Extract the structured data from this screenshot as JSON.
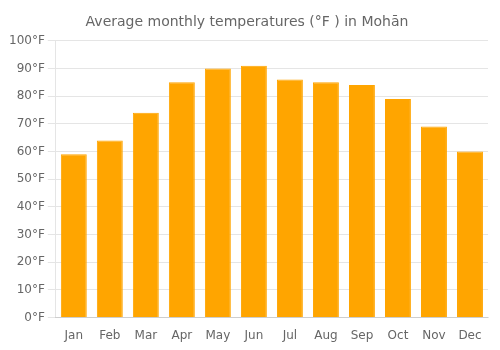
{
  "chart_data": {
    "type": "bar",
    "title": "Average monthly temperatures (°F ) in Mohān",
    "categories": [
      "Jan",
      "Feb",
      "Mar",
      "Apr",
      "May",
      "Jun",
      "Jul",
      "Aug",
      "Sep",
      "Oct",
      "Nov",
      "Dec"
    ],
    "values": [
      59,
      64,
      74,
      85,
      90,
      91,
      86,
      85,
      84,
      79,
      69,
      60
    ],
    "color": "#FFA500",
    "ylim": [
      0,
      100
    ],
    "yticks": [
      {
        "value": 0,
        "label": "0°F"
      },
      {
        "value": 10,
        "label": "10°F"
      },
      {
        "value": 20,
        "label": "20°F"
      },
      {
        "value": 30,
        "label": "30°F"
      },
      {
        "value": 40,
        "label": "40°F"
      },
      {
        "value": 50,
        "label": "50°F"
      },
      {
        "value": 60,
        "label": "60°F"
      },
      {
        "value": 70,
        "label": "70°F"
      },
      {
        "value": 80,
        "label": "80°F"
      },
      {
        "value": 90,
        "label": "90°F"
      },
      {
        "value": 100,
        "label": "100°F"
      }
    ],
    "grid": true
  }
}
